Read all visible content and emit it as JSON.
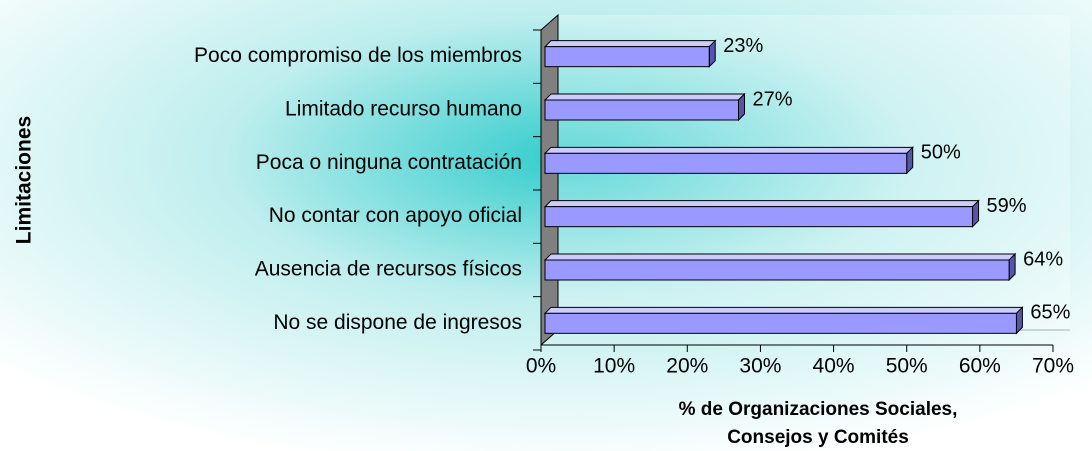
{
  "chart_data": {
    "type": "hbar3d",
    "ylabel": "Limitaciones",
    "xlabel": [
      "% de Organizaciones Sociales,",
      "Consejos y Comités"
    ],
    "categories": [
      "Poco compromiso de los miembros",
      "Limitado recurso humano",
      "Poca o ninguna contratación",
      "No contar con apoyo oficial",
      "Ausencia de recursos físicos",
      "No se dispone de ingresos"
    ],
    "values": [
      23,
      27,
      50,
      59,
      64,
      65
    ],
    "value_labels": [
      "23%",
      "27%",
      "50%",
      "59%",
      "64%",
      "65%"
    ],
    "color": "#9999ff",
    "xlim": [
      0,
      70
    ],
    "xticks": [
      {
        "value": 0,
        "label": "0%"
      },
      {
        "value": 10,
        "label": "10%"
      },
      {
        "value": 20,
        "label": "20%"
      },
      {
        "value": 30,
        "label": "30%"
      },
      {
        "value": 40,
        "label": "40%"
      },
      {
        "value": 50,
        "label": "50%"
      },
      {
        "value": 60,
        "label": "60%"
      },
      {
        "value": 70,
        "label": "70%"
      }
    ]
  }
}
